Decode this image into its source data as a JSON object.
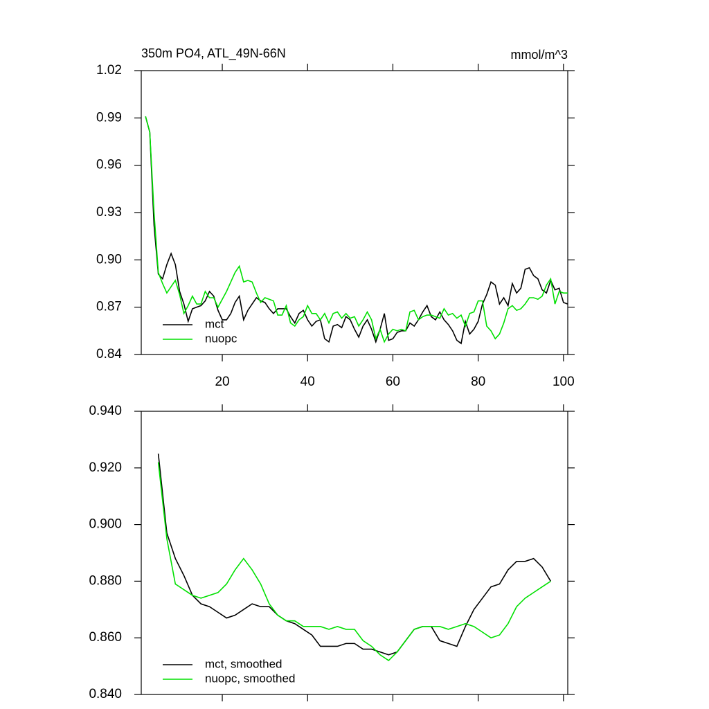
{
  "chart_data": [
    {
      "type": "line",
      "title": "350m PO4, ATL_49N-66N",
      "units": "mmol/m^3",
      "x": [
        2,
        3,
        4,
        5,
        6,
        7,
        8,
        9,
        10,
        11,
        12,
        13,
        14,
        15,
        16,
        17,
        18,
        19,
        20,
        21,
        22,
        23,
        24,
        25,
        26,
        27,
        28,
        29,
        30,
        31,
        32,
        33,
        34,
        35,
        36,
        37,
        38,
        39,
        40,
        41,
        42,
        43,
        44,
        45,
        46,
        47,
        48,
        49,
        50,
        51,
        52,
        53,
        54,
        55,
        56,
        57,
        58,
        59,
        60,
        61,
        62,
        63,
        64,
        65,
        66,
        67,
        68,
        69,
        70,
        71,
        72,
        73,
        74,
        75,
        76,
        77,
        78,
        79,
        80,
        81,
        82,
        83,
        84,
        85,
        86,
        87,
        88,
        89,
        90,
        91,
        92,
        93,
        94,
        95,
        96,
        97,
        98,
        99,
        100,
        101
      ],
      "series": [
        {
          "name": "mct",
          "color": "#000000",
          "values": [
            0.991,
            0.981,
            0.922,
            0.891,
            0.888,
            0.897,
            0.904,
            0.897,
            0.88,
            0.872,
            0.861,
            0.869,
            0.87,
            0.871,
            0.874,
            0.88,
            0.877,
            0.868,
            0.862,
            0.862,
            0.866,
            0.873,
            0.877,
            0.862,
            0.868,
            0.872,
            0.876,
            0.874,
            0.873,
            0.869,
            0.866,
            0.869,
            0.869,
            0.869,
            0.864,
            0.86,
            0.866,
            0.868,
            0.862,
            0.858,
            0.861,
            0.862,
            0.85,
            0.848,
            0.858,
            0.859,
            0.857,
            0.864,
            0.862,
            0.856,
            0.851,
            0.858,
            0.862,
            0.856,
            0.848,
            0.856,
            0.866,
            0.849,
            0.85,
            0.854,
            0.855,
            0.855,
            0.86,
            0.858,
            0.862,
            0.867,
            0.871,
            0.864,
            0.862,
            0.867,
            0.862,
            0.859,
            0.855,
            0.849,
            0.847,
            0.861,
            0.853,
            0.856,
            0.861,
            0.872,
            0.878,
            0.886,
            0.884,
            0.872,
            0.876,
            0.871,
            0.885,
            0.879,
            0.882,
            0.894,
            0.895,
            0.89,
            0.888,
            0.881,
            0.879,
            0.887,
            0.881,
            0.882,
            0.873,
            0.872
          ]
        },
        {
          "name": "nuopc",
          "color": "#00e000",
          "values": [
            0.991,
            0.981,
            0.93,
            0.892,
            0.885,
            0.879,
            0.883,
            0.887,
            0.878,
            0.866,
            0.871,
            0.877,
            0.872,
            0.872,
            0.88,
            0.876,
            0.876,
            0.87,
            0.875,
            0.88,
            0.886,
            0.892,
            0.896,
            0.886,
            0.887,
            0.886,
            0.879,
            0.873,
            0.876,
            0.875,
            0.874,
            0.865,
            0.865,
            0.871,
            0.86,
            0.858,
            0.862,
            0.864,
            0.871,
            0.866,
            0.866,
            0.862,
            0.866,
            0.86,
            0.866,
            0.867,
            0.863,
            0.866,
            0.863,
            0.864,
            0.858,
            0.862,
            0.867,
            0.862,
            0.85,
            0.856,
            0.848,
            0.853,
            0.856,
            0.855,
            0.856,
            0.855,
            0.867,
            0.868,
            0.862,
            0.864,
            0.865,
            0.865,
            0.864,
            0.863,
            0.869,
            0.865,
            0.866,
            0.863,
            0.865,
            0.858,
            0.866,
            0.867,
            0.874,
            0.874,
            0.858,
            0.855,
            0.85,
            0.853,
            0.86,
            0.869,
            0.871,
            0.868,
            0.869,
            0.872,
            0.876,
            0.876,
            0.875,
            0.877,
            0.884,
            0.888,
            0.872,
            0.88,
            0.879,
            0.879
          ]
        }
      ],
      "xlim": [
        1,
        101
      ],
      "xticks": [
        20,
        40,
        60,
        80,
        100
      ],
      "xtick_labels": true,
      "ylim": [
        0.84,
        1.02
      ],
      "yticks": [
        0.84,
        0.87,
        {
          "value": 0.9,
          "label": "0.90"
        },
        0.93,
        0.96,
        0.99,
        1.02
      ],
      "legend": "lower left"
    },
    {
      "type": "line",
      "x": [
        5,
        7,
        9,
        11,
        13,
        15,
        17,
        19,
        21,
        23,
        25,
        27,
        29,
        31,
        33,
        35,
        37,
        39,
        41,
        43,
        45,
        47,
        49,
        51,
        53,
        55,
        57,
        59,
        61,
        63,
        65,
        67,
        69,
        71,
        73,
        75,
        77,
        79,
        81,
        83,
        85,
        87,
        89,
        91,
        93,
        95,
        97
      ],
      "series": [
        {
          "name": "mct, smoothed",
          "color": "#000000",
          "values": [
            0.925,
            0.897,
            0.888,
            0.882,
            0.875,
            0.872,
            0.871,
            0.869,
            0.867,
            0.868,
            0.87,
            0.872,
            0.871,
            0.871,
            0.868,
            0.866,
            0.865,
            0.863,
            0.861,
            0.857,
            0.857,
            0.857,
            0.858,
            0.858,
            0.856,
            0.856,
            0.855,
            0.854,
            0.855,
            0.859,
            0.863,
            0.864,
            0.864,
            0.859,
            0.858,
            0.857,
            0.864,
            0.87,
            0.874,
            0.878,
            0.879,
            0.884,
            0.887,
            0.887,
            0.888,
            0.885,
            0.88
          ]
        },
        {
          "name": "nuopc, smoothed",
          "color": "#00e000",
          "values": [
            0.922,
            0.895,
            0.879,
            0.877,
            0.875,
            0.874,
            0.875,
            0.876,
            0.879,
            0.884,
            0.888,
            0.884,
            0.879,
            0.872,
            0.868,
            0.866,
            0.866,
            0.864,
            0.864,
            0.864,
            0.863,
            0.864,
            0.863,
            0.863,
            0.859,
            0.857,
            0.854,
            0.852,
            0.855,
            0.859,
            0.863,
            0.864,
            0.864,
            0.864,
            0.863,
            0.864,
            0.865,
            0.864,
            0.862,
            0.86,
            0.861,
            0.865,
            0.871,
            0.874,
            0.876,
            0.878,
            0.88
          ]
        }
      ],
      "xlim": [
        1,
        101
      ],
      "xticks": [
        20,
        40,
        60,
        80,
        100
      ],
      "xtick_labels": false,
      "ylim": [
        0.84,
        0.94
      ],
      "yticks": [
        {
          "value": 0.84,
          "label": "0.840"
        },
        {
          "value": 0.86,
          "label": "0.860"
        },
        {
          "value": 0.88,
          "label": "0.880"
        },
        {
          "value": 0.9,
          "label": "0.900"
        },
        {
          "value": 0.92,
          "label": "0.920"
        },
        {
          "value": 0.94,
          "label": "0.940"
        }
      ],
      "legend": "lower left"
    }
  ]
}
